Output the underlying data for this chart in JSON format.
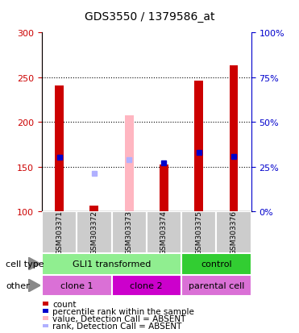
{
  "title": "GDS3550 / 1379586_at",
  "samples": [
    "GSM303371",
    "GSM303372",
    "GSM303373",
    "GSM303374",
    "GSM303375",
    "GSM303376"
  ],
  "ylim_left": [
    100,
    300
  ],
  "ylim_right": [
    0,
    100
  ],
  "yticks_left": [
    100,
    150,
    200,
    250,
    300
  ],
  "yticks_right": [
    0,
    25,
    50,
    75,
    100
  ],
  "count_values": [
    241,
    106,
    null,
    152,
    246,
    263
  ],
  "absent_value_values": [
    null,
    null,
    207,
    null,
    null,
    null
  ],
  "absent_rank_values": [
    null,
    142,
    null,
    null,
    null,
    null
  ],
  "percentile_rank_values": [
    160,
    null,
    158,
    154,
    166,
    161
  ],
  "percentile_absent": [
    false,
    false,
    true,
    false,
    false,
    false
  ],
  "cell_type_groups": [
    {
      "label": "GLI1 transformed",
      "start": 0,
      "end": 4,
      "color": "#90ee90"
    },
    {
      "label": "control",
      "start": 4,
      "end": 6,
      "color": "#32cd32"
    }
  ],
  "other_groups": [
    {
      "label": "clone 1",
      "start": 0,
      "end": 2,
      "color": "#da70d6"
    },
    {
      "label": "clone 2",
      "start": 2,
      "end": 4,
      "color": "#cc00cc"
    },
    {
      "label": "parental cell",
      "start": 4,
      "end": 6,
      "color": "#da70d6"
    }
  ],
  "legend_colors": [
    "#cc0000",
    "#0000cc",
    "#ffb6c1",
    "#b0b0ff"
  ],
  "legend_labels": [
    "count",
    "percentile rank within the sample",
    "value, Detection Call = ABSENT",
    "rank, Detection Call = ABSENT"
  ],
  "left_tick_color": "#cc0000",
  "right_tick_color": "#0000cc",
  "main_axes": [
    0.14,
    0.365,
    0.7,
    0.535
  ],
  "sample_axes": [
    0.14,
    0.24,
    0.7,
    0.125
  ],
  "celltype_axes": [
    0.14,
    0.175,
    0.7,
    0.065
  ],
  "other_axes": [
    0.14,
    0.11,
    0.7,
    0.065
  ]
}
